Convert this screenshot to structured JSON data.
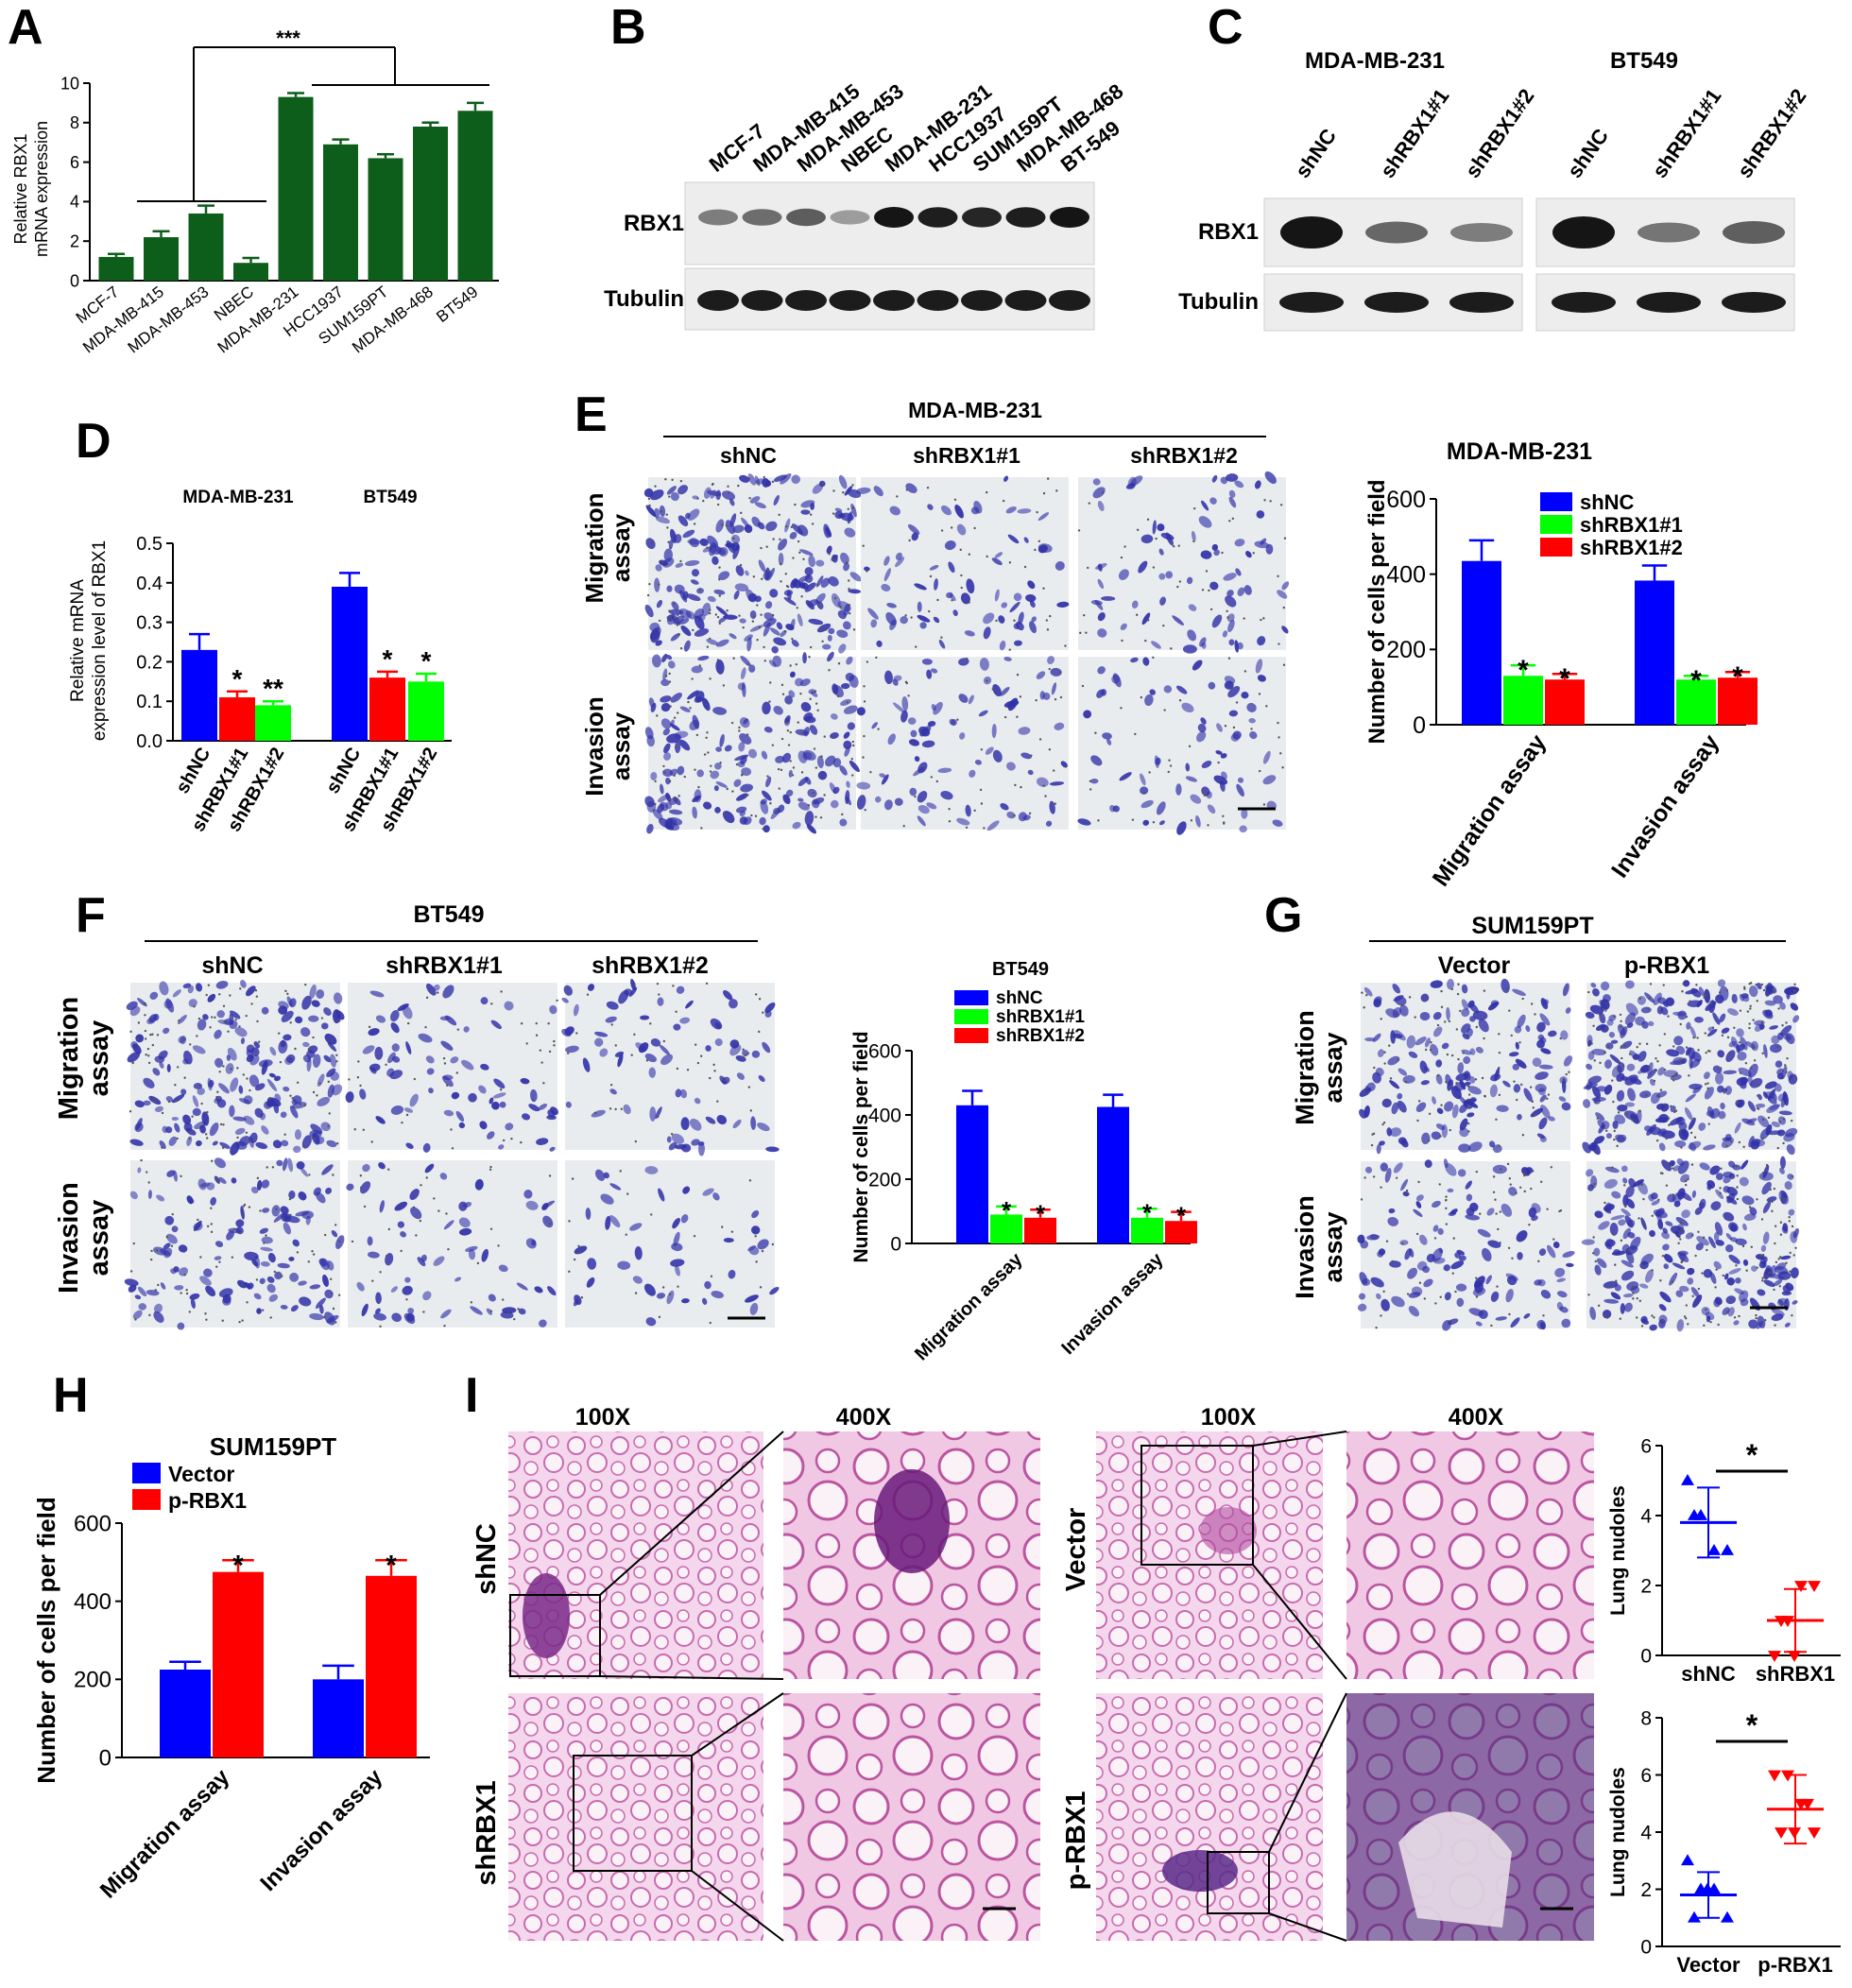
{
  "panel_letters": {
    "A": "A",
    "B": "B",
    "C": "C",
    "D": "D",
    "E": "E",
    "F": "F",
    "G": "G",
    "H": "H",
    "I": "I"
  },
  "colors": {
    "green": "#0d5e1a",
    "blue": "#0000ff",
    "lime": "#00ff00",
    "red": "#ff0000",
    "black": "#000000"
  },
  "sig": {
    "three": "***",
    "two": "**",
    "one": "*"
  },
  "panelA": {
    "ylabel_line1": "Relative RBX1",
    "ylabel_line2": "mRNA expression"
  },
  "panelB": {
    "lanes": [
      "MCF-7",
      "MDA-MB-415",
      "MDA-MB-453",
      "NBEC",
      "MDA-MB-231",
      "HCC1937",
      "SUM159PT",
      "MDA-MB-468",
      "BT-549"
    ],
    "row1": "RBX1",
    "row2": "Tubulin"
  },
  "panelC": {
    "group1": "MDA-MB-231",
    "group2": "BT549",
    "lanes": [
      "shNC",
      "shRBX1#1",
      "shRBX1#2"
    ],
    "row1": "RBX1",
    "row2": "Tubulin"
  },
  "panelD": {
    "title1": "MDA-MB-231",
    "title2": "BT549",
    "ylabel_line1": "Relative mRNA",
    "ylabel_line2": "expression level of RBX1"
  },
  "panelE": {
    "title": "MDA-MB-231",
    "cols": [
      "shNC",
      "shRBX1#1",
      "shRBX1#2"
    ],
    "row1": [
      "Migration",
      "assay"
    ],
    "row2": [
      "Invasion",
      "assay"
    ],
    "chart_title": "MDA-MB-231"
  },
  "panelF": {
    "title": "BT549",
    "cols": [
      "shNC",
      "shRBX1#1",
      "shRBX1#2"
    ],
    "row1": [
      "Migration",
      "assay"
    ],
    "row2": [
      "Invasion",
      "assay"
    ],
    "chart_title": "BT549"
  },
  "panelG": {
    "title": "SUM159PT",
    "cols": [
      "Vector",
      "p-RBX1"
    ],
    "row1": [
      "Migration",
      "assay"
    ],
    "row2": [
      "Invasion",
      "assay"
    ]
  },
  "panelH": {
    "title": "SUM159PT"
  },
  "panelI": {
    "mag1": "100X",
    "mag2": "400X",
    "mag3": "100X",
    "mag4": "400X",
    "row_labels": [
      "shNC",
      "shRBX1",
      "Vector",
      "p-RBX1"
    ]
  },
  "chart_data": [
    {
      "id": "A",
      "type": "bar",
      "ylabel": "Relative RBX1 mRNA expression",
      "categories": [
        "MCF-7",
        "MDA-MB-415",
        "MDA-MB-453",
        "NBEC",
        "MDA-MB-231",
        "HCC1937",
        "SUM159PT",
        "MDA-MB-468",
        "BT549"
      ],
      "values": [
        1.2,
        2.2,
        3.4,
        0.9,
        9.3,
        6.9,
        6.2,
        7.8,
        8.6
      ],
      "errors": [
        0.15,
        0.3,
        0.4,
        0.25,
        0.2,
        0.25,
        0.2,
        0.2,
        0.4
      ],
      "ylim": [
        0,
        10
      ],
      "yticks": [
        0,
        2,
        4,
        6,
        8,
        10
      ],
      "annotation": "***"
    },
    {
      "id": "D",
      "type": "bar",
      "ylabel": "Relative mRNA expression level of RBX1",
      "categories": [
        "shNC",
        "shRBX1#1",
        "shRBX1#2",
        "shNC",
        "shRBX1#1",
        "shRBX1#2"
      ],
      "groups": [
        "MDA-MB-231",
        "BT549"
      ],
      "values": [
        0.23,
        0.11,
        0.09,
        0.39,
        0.16,
        0.15
      ],
      "errors": [
        0.04,
        0.015,
        0.01,
        0.035,
        0.015,
        0.02
      ],
      "ylim": [
        0,
        0.5
      ],
      "yticks": [
        0,
        0.1,
        0.2,
        0.3,
        0.4,
        0.5
      ],
      "sig": [
        "",
        "*",
        "**",
        "",
        "*",
        "*"
      ]
    },
    {
      "id": "E",
      "type": "bar",
      "title": "MDA-MB-231",
      "ylabel": "Number of cells per field",
      "categories": [
        "Migration assay",
        "Invasion  assay"
      ],
      "series": [
        {
          "name": "shNC",
          "values": [
            435,
            383
          ],
          "errors": [
            55,
            40
          ]
        },
        {
          "name": "shRBX1#1",
          "values": [
            130,
            120
          ],
          "errors": [
            28,
            10
          ]
        },
        {
          "name": "shRBX1#2",
          "values": [
            120,
            125
          ],
          "errors": [
            15,
            15
          ]
        }
      ],
      "ylim": [
        0,
        600
      ],
      "yticks": [
        0,
        200,
        400,
        600
      ],
      "sig": "*"
    },
    {
      "id": "F",
      "type": "bar",
      "title": "BT549",
      "ylabel": "Number of cells per field",
      "categories": [
        "Migration assay",
        "Invasion  assay"
      ],
      "series": [
        {
          "name": "shNC",
          "values": [
            430,
            425
          ],
          "errors": [
            45,
            38
          ]
        },
        {
          "name": "shRBX1#1",
          "values": [
            90,
            80
          ],
          "errors": [
            25,
            28
          ]
        },
        {
          "name": "shRBX1#2",
          "values": [
            80,
            70
          ],
          "errors": [
            25,
            28
          ]
        }
      ],
      "ylim": [
        0,
        600
      ],
      "yticks": [
        0,
        200,
        400,
        600
      ],
      "sig": "*"
    },
    {
      "id": "H",
      "type": "bar",
      "title": "SUM159PT",
      "ylabel": "Number of cells per field",
      "categories": [
        "Migration assay",
        "Invasion  assay"
      ],
      "series": [
        {
          "name": "Vector",
          "values": [
            225,
            200
          ],
          "errors": [
            20,
            35
          ]
        },
        {
          "name": "p-RBX1",
          "values": [
            475,
            465
          ],
          "errors": [
            30,
            40
          ]
        }
      ],
      "ylim": [
        0,
        600
      ],
      "yticks": [
        0,
        200,
        400,
        600
      ],
      "sig": "*"
    },
    {
      "id": "I-top",
      "type": "scatter",
      "ylabel": "Lung nudoles",
      "categories": [
        "shNC",
        "shRBX1"
      ],
      "points": [
        [
          5,
          4,
          3,
          3,
          4
        ],
        [
          0,
          1,
          2,
          2,
          1,
          0
        ]
      ],
      "means": [
        3.8,
        1.0
      ],
      "sd": [
        1.0,
        0.9
      ],
      "ylim": [
        0,
        6
      ],
      "yticks": [
        0,
        2,
        4,
        6
      ],
      "sig": "*"
    },
    {
      "id": "I-bottom",
      "type": "scatter",
      "ylabel": "Lung nudoles",
      "categories": [
        "Vector",
        "p-RBX1"
      ],
      "points": [
        [
          3,
          2,
          2,
          1,
          1,
          2
        ],
        [
          6,
          6,
          5,
          4,
          4,
          4,
          5
        ]
      ],
      "means": [
        1.8,
        4.8
      ],
      "sd": [
        0.8,
        1.2
      ],
      "ylim": [
        0,
        8
      ],
      "yticks": [
        0,
        2,
        4,
        6,
        8
      ],
      "sig": "*"
    }
  ]
}
